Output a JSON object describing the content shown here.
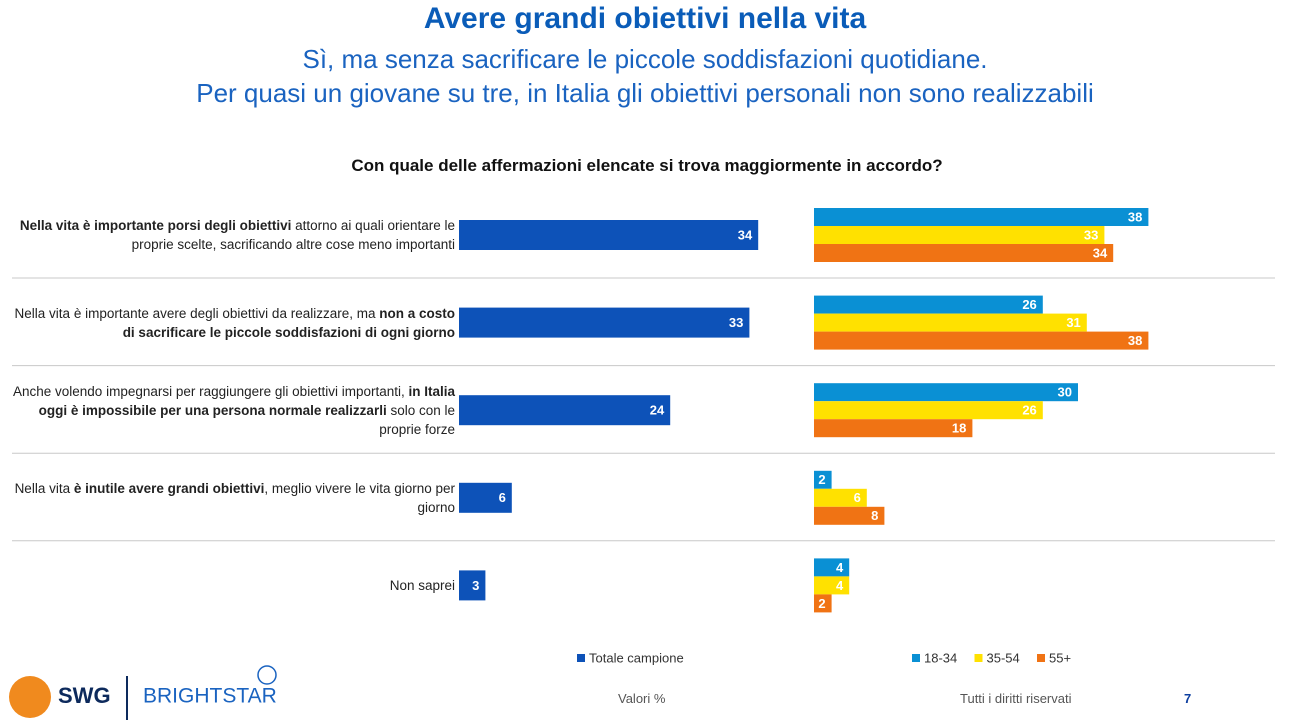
{
  "title": "Avere grandi obiettivi nella vita",
  "subtitle": [
    "Sì, ma senza sacrificare le piccole soddisfazioni quotidiane.",
    "Per quasi un giovane su tre, in Italia gli obiettivi personali non sono realizzabili"
  ],
  "footer": {
    "logos": [
      "SWG",
      "BRIGHTSTAR"
    ],
    "note": "Valori %",
    "rights": "Tutti i diritti riservati",
    "page": "7"
  },
  "chart_data": {
    "type": "bar",
    "title": "Con quale delle affermazioni elencate si trova maggiormente in accordo?",
    "categories": [
      [
        {
          "text": "Nella vita è importante porsi degli obiettivi",
          "bold": true
        },
        {
          "text": " attorno ai quali orientare le proprie scelte, sacrificando altre cose meno importanti",
          "bold": false
        }
      ],
      [
        {
          "text": "Nella vita è importante avere degli obiettivi da realizzare, ma ",
          "bold": false
        },
        {
          "text": "non a costo di sacrificare le piccole soddisfazioni di ogni giorno",
          "bold": true
        }
      ],
      [
        {
          "text": "Anche volendo impegnarsi per raggiungere gli obiettivi importanti, ",
          "bold": false
        },
        {
          "text": "in Italia oggi è impossibile per una persona normale realizzarli",
          "bold": true
        },
        {
          "text": " solo con le proprie forze",
          "bold": false
        }
      ],
      [
        {
          "text": "Nella vita ",
          "bold": false
        },
        {
          "text": "è inutile avere grandi obiettivi",
          "bold": true
        },
        {
          "text": ", meglio vivere le vita giorno per giorno",
          "bold": false
        }
      ],
      [
        {
          "text": "Non saprei",
          "bold": false
        }
      ]
    ],
    "series": [
      {
        "name": "Totale campione",
        "color": "#0d52b8",
        "values": [
          34,
          33,
          24,
          6,
          3
        ]
      },
      {
        "name": "18-34",
        "color": "#0a90d4",
        "values": [
          38,
          26,
          30,
          2,
          4
        ]
      },
      {
        "name": "35-54",
        "color": "#ffe100",
        "values": [
          33,
          31,
          26,
          6,
          4
        ]
      },
      {
        "name": "55+",
        "color": "#f07314",
        "values": [
          34,
          38,
          18,
          8,
          2
        ]
      }
    ]
  }
}
